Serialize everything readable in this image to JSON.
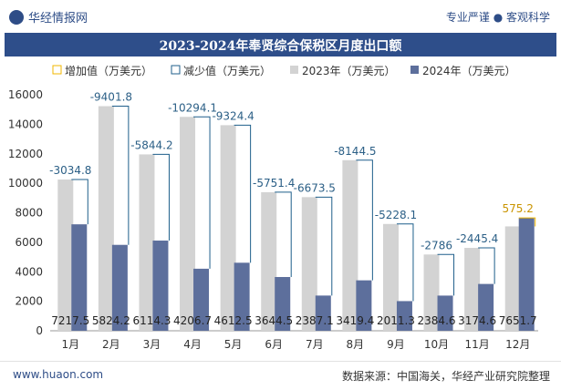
{
  "header": {
    "brand": "华经情报网",
    "tagline": "专业严谨 ● 客观科学"
  },
  "footer": {
    "url": "www.huaon.com",
    "source": "数据来源：中国海关，华经产业研究院整理"
  },
  "colors": {
    "bar_2023": "#d3d3d3",
    "bar_2024": "#5d6f9c",
    "increase_line": "#f2b700",
    "decrease_line": "#1f5f8b",
    "header_bg": "#2e4e8a"
  },
  "chart_data": {
    "type": "bar",
    "title": "2023-2024年奉贤综合保税区月度出口额",
    "categories": [
      "1月",
      "2月",
      "3月",
      "4月",
      "5月",
      "6月",
      "7月",
      "8月",
      "9月",
      "10月",
      "11月",
      "12月"
    ],
    "ylim": [
      0,
      16000
    ],
    "yticks": [
      0,
      2000,
      4000,
      6000,
      8000,
      10000,
      12000,
      14000,
      16000
    ],
    "legend_position": "top",
    "legend": [
      "增加值（万美元）",
      "减少值（万美元）",
      "2023年（万美元）",
      "2024年（万美元）"
    ],
    "series": [
      {
        "name": "2023年（万美元）",
        "values": [
          10252.3,
          15225.9,
          11958.5,
          14500.9,
          13937.0,
          9395.9,
          9061.0,
          11563.9,
          7239.4,
          5170.6,
          5620.0,
          7076.5
        ]
      },
      {
        "name": "2024年（万美元）",
        "values": [
          7217.5,
          5824.2,
          6114.3,
          4206.7,
          4612.5,
          3644.5,
          2387.1,
          3419.4,
          2011.3,
          2384.6,
          3174.6,
          7651.7
        ]
      }
    ],
    "change": [
      {
        "name": "增加值（万美元）",
        "values": [
          null,
          null,
          null,
          null,
          null,
          null,
          null,
          null,
          null,
          null,
          null,
          575.2
        ]
      },
      {
        "name": "减少值（万美元）",
        "values": [
          -3034.8,
          -9401.8,
          -5844.2,
          -10294.1,
          -9324.4,
          -5751.4,
          -6673.5,
          -8144.5,
          -5228.1,
          -2786,
          -2445.4,
          null
        ]
      }
    ],
    "labels_2024": [
      "7217.5",
      "5824.2",
      "6114.3",
      "4206.7",
      "4612.5",
      "3644.5",
      "2387.1",
      "3419.4",
      "2011.3",
      "2384.6",
      "3174.6",
      "7651.7"
    ],
    "labels_change": [
      "-3034.8",
      "-9401.8",
      "-5844.2",
      "-10294.1",
      "-9324.4",
      "-5751.4",
      "-6673.5",
      "-8144.5",
      "-5228.1",
      "-2786",
      "-2445.4",
      "575.2"
    ]
  }
}
